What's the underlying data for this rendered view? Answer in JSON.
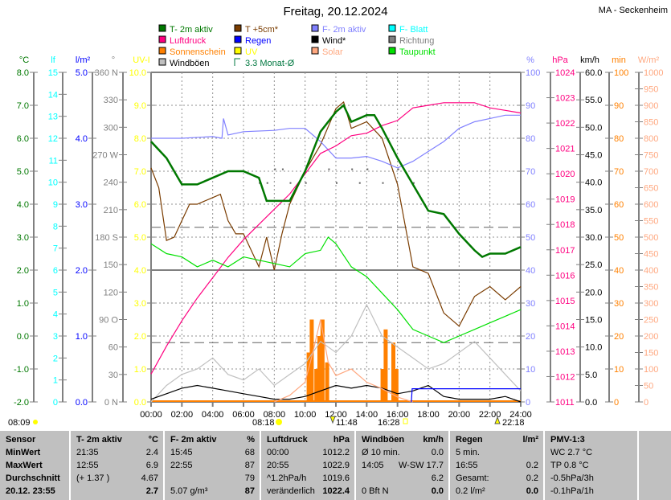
{
  "header": {
    "title": "Freitag, 20.12.2024",
    "station": "MA - Seckenheim"
  },
  "legend": [
    {
      "label": "T- 2m aktiv",
      "color": "#007800"
    },
    {
      "label": "T +5cm*",
      "color": "#7a3c00"
    },
    {
      "label": "F- 2m aktiv",
      "color": "#8080ff"
    },
    {
      "label": "F- Blatt",
      "color": "#00ffff"
    },
    {
      "label": "Luftdruck",
      "color": "#ff0080"
    },
    {
      "label": "Regen",
      "color": "#0000ff"
    },
    {
      "label": "Wind*",
      "color": "#000000"
    },
    {
      "label": "Richtung",
      "color": "#808080"
    },
    {
      "label": "Sonnenschein",
      "color": "#ff8000"
    },
    {
      "label": "UV",
      "color": "#ffff00"
    },
    {
      "label": "Solar",
      "color": "#ffa880"
    },
    {
      "label": "Taupunkt",
      "color": "#00e000"
    },
    {
      "label": "Windböen",
      "color": "#c0c0c0"
    },
    {
      "label": "3.3 Monat-Ø",
      "color": "#007840"
    }
  ],
  "chart_data": {
    "type": "line",
    "title": "Freitag, 20.12.2024",
    "x_ticks": [
      "00:00",
      "02:00",
      "04:00",
      "06:00",
      "08:00",
      "10:00",
      "12:00",
      "14:00",
      "16:00",
      "18:00",
      "20:00",
      "22:00",
      "24:00"
    ],
    "grid": true,
    "axes_left": [
      {
        "unit": "°C",
        "min": -2,
        "max": 8,
        "step": 1,
        "dec": 1,
        "color": "#007800"
      },
      {
        "unit": "lf",
        "min": 0,
        "max": 15,
        "step": 1,
        "dec": 0,
        "color": "#00ffff"
      },
      {
        "unit": "l/m²",
        "min": 0,
        "max": 5,
        "step": 1,
        "dec": 1,
        "color": "#0000ff"
      },
      {
        "unit": "°",
        "min": 0,
        "max": 360,
        "step": 30,
        "dec": 0,
        "color": "#808080",
        "labels": {
          "0": "0 N",
          "90": "90 O",
          "180": "180 S",
          "270": "270 W",
          "360": "360 N"
        }
      },
      {
        "unit": "UV-I",
        "min": 0,
        "max": 10,
        "step": 1,
        "dec": 1,
        "color": "#ffff00"
      }
    ],
    "axes_right": [
      {
        "unit": "%",
        "min": 0,
        "max": 100,
        "step": 10,
        "dec": 0,
        "color": "#8080ff"
      },
      {
        "unit": "hPa",
        "min": 1011,
        "max": 1024,
        "step": 1,
        "dec": 0,
        "color": "#ff0080"
      },
      {
        "unit": "km/h",
        "min": 0,
        "max": 60,
        "step": 5,
        "dec": 1,
        "color": "#000000"
      },
      {
        "unit": "min",
        "min": 0,
        "max": 100,
        "step": 10,
        "dec": 0,
        "color": "#ff8000"
      },
      {
        "unit": "W/m²",
        "min": 0,
        "max": 1000,
        "step": 50,
        "dec": 0,
        "color": "#ffa880"
      }
    ],
    "series": [
      {
        "name": "T +5cm*",
        "axis": "°C",
        "color": "#7a3c00",
        "x": [
          0,
          0.5,
          1,
          1.5,
          2,
          2.5,
          3,
          4,
          4.5,
          5,
          5.5,
          6,
          7,
          7.5,
          8,
          8.5,
          9,
          10,
          11,
          12,
          12.5,
          13,
          14,
          15,
          16,
          17,
          18,
          19,
          20,
          21,
          22,
          23,
          24
        ],
        "y": [
          5.1,
          4.5,
          2.9,
          3.0,
          3.5,
          4.0,
          4.0,
          4.2,
          4.3,
          3.5,
          3.1,
          3.1,
          2.1,
          3.0,
          2.0,
          3.1,
          4.0,
          5.0,
          5.8,
          6.9,
          7.1,
          6.3,
          6.5,
          6.0,
          4.6,
          2.1,
          1.9,
          0.7,
          0.3,
          1.2,
          1.5,
          1.1,
          1.5
        ]
      },
      {
        "name": "F- 2m aktiv",
        "axis": "%",
        "color": "#8080ff",
        "x": [
          0,
          2,
          4,
          4.6,
          4.7,
          5,
          6,
          8,
          9,
          10,
          11,
          12,
          13,
          14,
          15,
          16,
          16.5,
          17,
          18,
          19,
          20,
          21,
          22,
          23,
          24
        ],
        "y": [
          80,
          80,
          80.5,
          80,
          86,
          81,
          82,
          82.4,
          83,
          83,
          79,
          74,
          74,
          74.5,
          73,
          71,
          72,
          73,
          76,
          79,
          83,
          85,
          86,
          87,
          87
        ]
      },
      {
        "name": "Luftdruck",
        "axis": "hPa",
        "color": "#ff0080",
        "x": [
          0,
          1,
          2,
          3,
          4,
          5,
          6,
          7,
          8,
          9,
          10,
          11,
          12,
          13,
          14,
          15,
          16,
          17,
          18,
          19,
          20,
          21,
          22,
          23,
          24
        ],
        "y": [
          1012.1,
          1013.2,
          1014.2,
          1015.1,
          1015.9,
          1016.7,
          1017.4,
          1018.0,
          1018.6,
          1019.2,
          1020.0,
          1020.8,
          1021.1,
          1021.5,
          1021.6,
          1021.9,
          1022.1,
          1022.6,
          1022.7,
          1022.8,
          1022.8,
          1022.8,
          1022.6,
          1022.5,
          1022.4
        ]
      },
      {
        "name": "Taupunkt",
        "axis": "°C",
        "color": "#00e000",
        "x": [
          0,
          1,
          2,
          3,
          4,
          5,
          6,
          7,
          8,
          9,
          10,
          11,
          11.5,
          12,
          13,
          14,
          15,
          16,
          17,
          18,
          19,
          20,
          21,
          22,
          23,
          24
        ],
        "y": [
          2.8,
          2.5,
          2.4,
          2.1,
          2.3,
          2.1,
          2.4,
          2.3,
          2.2,
          2.1,
          2.5,
          2.6,
          3.0,
          2.8,
          2.1,
          1.8,
          1.3,
          0.8,
          0.2,
          0.0,
          -0.2,
          0.0,
          0.2,
          0.4,
          0.6,
          0.8
        ]
      },
      {
        "name": "T- 2m aktiv",
        "axis": "°C",
        "color": "#007800",
        "x": [
          0,
          1,
          2,
          3,
          4,
          5,
          6,
          7,
          7.5,
          8,
          9,
          10,
          11,
          12,
          12.5,
          13,
          14,
          14.5,
          15,
          16,
          17,
          18,
          19,
          20,
          21,
          21.5,
          22,
          23,
          24
        ],
        "y": [
          5.9,
          5.4,
          4.6,
          4.6,
          4.8,
          5.0,
          5.0,
          4.8,
          4.1,
          4.1,
          4.1,
          5.0,
          6.2,
          6.8,
          7.0,
          6.5,
          6.7,
          6.7,
          6.3,
          5.4,
          4.6,
          3.8,
          3.7,
          3.1,
          2.6,
          2.4,
          2.5,
          2.5,
          2.7
        ]
      },
      {
        "name": "Windböen",
        "axis": "km/h",
        "color": "#c0c0c0",
        "x": [
          0,
          1,
          2,
          3,
          4,
          5,
          6,
          7,
          8,
          9,
          10,
          11,
          12,
          13,
          14,
          15,
          16,
          17,
          18,
          19,
          20,
          21,
          22,
          23,
          24
        ],
        "y": [
          0,
          3,
          5,
          6,
          8,
          5,
          4,
          6,
          3,
          5,
          7,
          11,
          9,
          12,
          17.7,
          12,
          10,
          8,
          6,
          7,
          9,
          11,
          8,
          5,
          2
        ]
      },
      {
        "name": "Wind*",
        "axis": "km/h",
        "color": "#000000",
        "x": [
          0,
          1,
          2,
          3,
          4,
          5,
          6,
          7,
          8,
          9,
          10,
          11,
          12,
          13,
          14,
          15,
          16,
          17,
          18,
          19,
          20,
          21,
          22,
          23,
          24
        ],
        "y": [
          0.5,
          1.5,
          2.5,
          3,
          2.5,
          2,
          1.5,
          1,
          0.5,
          0.5,
          1,
          2,
          3,
          2.5,
          3,
          2.5,
          1.5,
          2,
          3,
          1,
          0.5,
          0.5,
          0.5,
          1,
          0
        ]
      },
      {
        "name": "Solar",
        "axis": "W/m²",
        "color": "#ffa880",
        "x": [
          8,
          9,
          10,
          10.5,
          11,
          11.5,
          12,
          13,
          14,
          15,
          16,
          17
        ],
        "y": [
          0,
          20,
          60,
          150,
          250,
          120,
          80,
          100,
          60,
          40,
          15,
          0
        ]
      },
      {
        "name": "Regen",
        "axis": "l/m²",
        "color": "#0000ff",
        "x": [
          16.9,
          16.95,
          24
        ],
        "y": [
          0,
          0.2,
          0.2
        ]
      }
    ],
    "sunshine_bars": {
      "axis": "min",
      "x": [
        10.1,
        10.3,
        10.6,
        10.8,
        11.0,
        11.3,
        14.9,
        15.1,
        15.6,
        15.8
      ],
      "values": [
        15,
        25,
        10,
        20,
        25,
        12,
        10,
        22,
        18,
        10
      ]
    },
    "direction_points": {
      "axis": "°",
      "x": [
        7,
        7.5,
        8,
        8.5,
        9,
        10,
        11.5,
        12,
        13,
        13.5,
        14,
        15,
        16,
        17
      ],
      "values": [
        240,
        240,
        255,
        255,
        240,
        240,
        255,
        240,
        255,
        240,
        255,
        240,
        255,
        240
      ]
    },
    "reference_lines": [
      {
        "axis": "°C",
        "value": 3.3,
        "label": "3.3 Monat-Ø"
      },
      {
        "axis": "°C",
        "value": -0.2
      }
    ],
    "solid_line": {
      "axis": "°C",
      "value": 2.0
    }
  },
  "sun_events": {
    "start": "08:09",
    "sunrise": "08:18",
    "moon": "11:48",
    "sunset": "16:28",
    "moonset": "22:18"
  },
  "stats": [
    {
      "head": [
        "T- 2m aktiv",
        "°C"
      ],
      "rows": [
        [
          "21:35",
          "2.4"
        ],
        [
          "12:55",
          "6.9"
        ],
        [
          "(+ 1.37 )",
          "4.67"
        ],
        [
          "",
          "2.7"
        ]
      ]
    },
    {
      "head": [
        "F- 2m aktiv",
        "%"
      ],
      "rows": [
        [
          "15:45",
          "68"
        ],
        [
          "22:55",
          "87"
        ],
        [
          "",
          "79"
        ],
        [
          "5.07 g/m³",
          "87"
        ]
      ]
    },
    {
      "head": [
        "Luftdruck",
        "hPa"
      ],
      "rows": [
        [
          "00:00",
          "1012.2"
        ],
        [
          "20:55",
          "1022.9"
        ],
        [
          "^1.2hPa/h",
          "1019.6"
        ],
        [
          "veränderlich",
          "1022.4"
        ]
      ]
    },
    {
      "head": [
        "Windböen",
        "km/h"
      ],
      "rows": [
        [
          "Ø 10 min.",
          "0.0"
        ],
        [
          "14:05",
          "W-SW 17.7"
        ],
        [
          "",
          "6.2"
        ],
        [
          "0 Bft N",
          "0.0"
        ]
      ]
    },
    {
      "head": [
        "Regen",
        "l/m²"
      ],
      "rows": [
        [
          "5 min.",
          ""
        ],
        [
          "16:55",
          "0.2"
        ],
        [
          "Gesamt:",
          "0.2"
        ],
        [
          "0.2 l/m²",
          "0.0"
        ]
      ]
    },
    {
      "head": [
        "PMV-1:3",
        ""
      ],
      "rows": [
        [
          "WC 2.7 °C",
          ""
        ],
        [
          "TP 0.8 °C",
          ""
        ],
        [
          "-0.5hPa/3h",
          ""
        ],
        [
          "-0.1hPa/1h",
          ""
        ]
      ]
    }
  ],
  "sensor_col": {
    "head": "Sensor",
    "rows": [
      "MinWert",
      "MaxWert",
      "Durchschnitt",
      "20.12. 23:55"
    ]
  }
}
